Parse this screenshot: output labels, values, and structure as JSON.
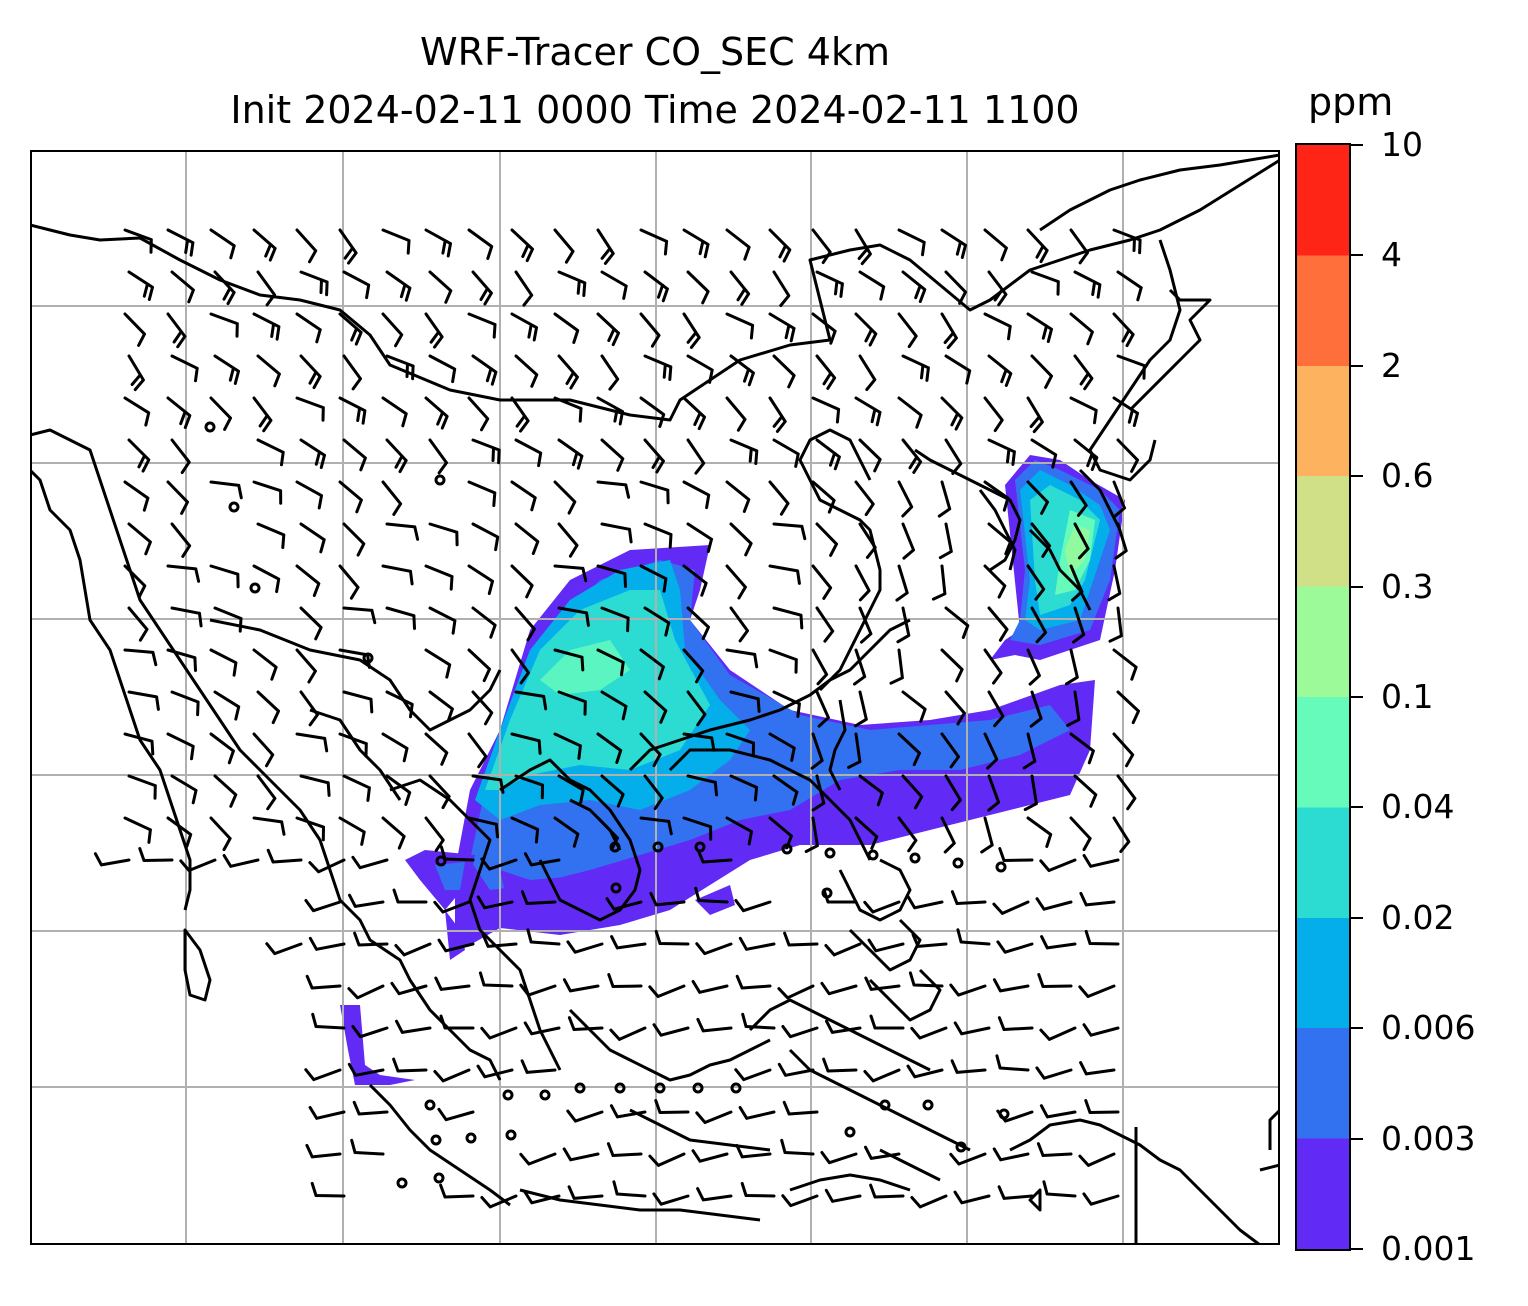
{
  "title": {
    "line1": "WRF-Tracer CO_SEC 4km",
    "line2": "Init 2024-02-11 0000 Time 2024-02-11 1100"
  },
  "colorbar": {
    "unit": "ppm",
    "levels": [
      "0.001",
      "0.003",
      "0.006",
      "0.02",
      "0.04",
      "0.1",
      "0.3",
      "0.6",
      "2",
      "4",
      "10"
    ],
    "colors": [
      "#612bf5",
      "#3272f1",
      "#03aeea",
      "#2cdcd3",
      "#66fbbb",
      "#9cfa98",
      "#cfe087",
      "#fdb260",
      "#fe6f3c",
      "#fe2516"
    ]
  },
  "map": {
    "tracer": "CO_SEC",
    "background": "#ffffff",
    "coastline_color": "#000000",
    "gridline_color": "#b0b0b0",
    "vector_symbol": "wind-barb",
    "calm_symbol": "circle"
  }
}
